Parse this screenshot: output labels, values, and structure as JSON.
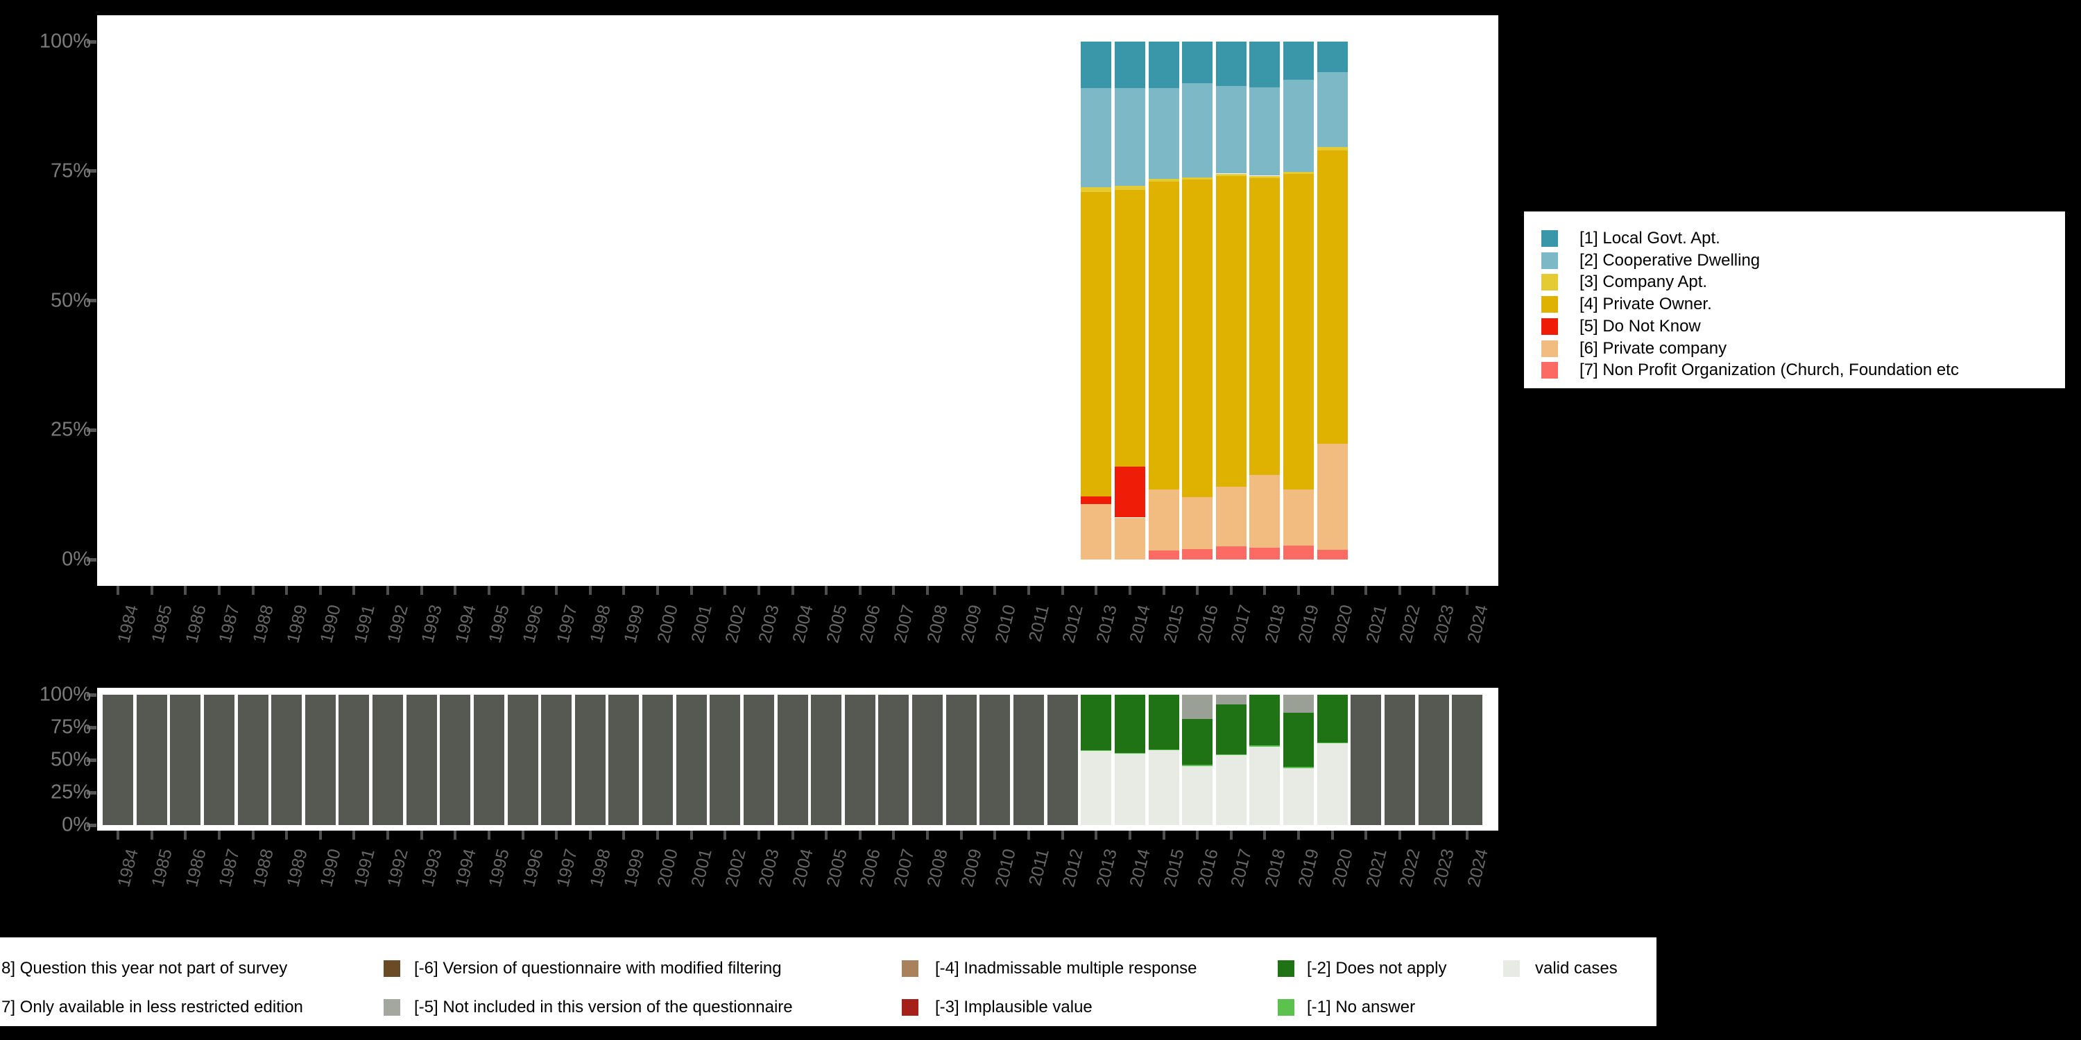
{
  "page": {
    "background": "#000000",
    "panel_background": "#ffffff"
  },
  "axes": {
    "years": [
      "1984",
      "1985",
      "1986",
      "1987",
      "1988",
      "1989",
      "1990",
      "1991",
      "1992",
      "1993",
      "1994",
      "1995",
      "1996",
      "1997",
      "1998",
      "1999",
      "2000",
      "2001",
      "2002",
      "2003",
      "2004",
      "2005",
      "2006",
      "2007",
      "2008",
      "2009",
      "2010",
      "2011",
      "2012",
      "2013",
      "2014",
      "2015",
      "2016",
      "2017",
      "2018",
      "2019",
      "2020",
      "2021",
      "2022",
      "2023",
      "2024"
    ],
    "percent_ticks": [
      {
        "label": "100%",
        "pct": 100
      },
      {
        "label": "75%",
        "pct": 75
      },
      {
        "label": "50%",
        "pct": 50
      },
      {
        "label": "25%",
        "pct": 25
      },
      {
        "label": "0%",
        "pct": 0
      }
    ]
  },
  "top_legend": {
    "items": [
      {
        "label": "[1] Local Govt. Apt.",
        "color": "#3a97aa"
      },
      {
        "label": "[2] Cooperative Dwelling",
        "color": "#7cb8c6"
      },
      {
        "label": "[3] Company Apt.",
        "color": "#e4ca33"
      },
      {
        "label": "[4] Private Owner.",
        "color": "#dfb100"
      },
      {
        "label": "[5] Do Not Know",
        "color": "#ef1c08"
      },
      {
        "label": "[6] Private company",
        "color": "#f2bc80"
      },
      {
        "label": "[7] Non Profit Organization (Church, Foundation etc",
        "color": "#fb6a63"
      }
    ]
  },
  "bottom_legend": {
    "columns": [
      {
        "x_swatch": null,
        "x_label": 2,
        "row1": {
          "label": "8] Question this year not part of survey",
          "color": null
        },
        "row2": {
          "label": "7] Only available in less restricted edition",
          "color": null
        }
      },
      {
        "x_swatch": 553,
        "x_label": 597,
        "row1": {
          "label": "[-6] Version of questionnaire with modified filtering",
          "color": "#6b4a26"
        },
        "row2": {
          "label": "[-5] Not included in this version of the questionnaire",
          "color": "#a3a79f"
        }
      },
      {
        "x_swatch": 1300,
        "x_label": 1348,
        "row1": {
          "label": "[-4] Inadmissable multiple response",
          "color": "#a9825c"
        },
        "row2": {
          "label": "[-3] Implausible value",
          "color": "#a6201a"
        }
      },
      {
        "x_swatch": 1842,
        "x_label": 1884,
        "row1": {
          "label": "[-2] Does not apply",
          "color": "#1f7314"
        },
        "row2": {
          "label": "[-1] No answer",
          "color": "#5cc24e"
        }
      },
      {
        "x_swatch": 2167,
        "x_label": 2213,
        "row1": {
          "label": "valid cases",
          "color": "#e7ebe3"
        },
        "row2": {
          "label": "",
          "color": null
        }
      }
    ]
  },
  "chart_data": [
    {
      "id": "category-distribution",
      "type": "bar",
      "stacked": true,
      "unit": "percent",
      "ylim": [
        0,
        100
      ],
      "grid": false,
      "legend_position": "right",
      "categories_all_years": true,
      "bar_years": [
        "2013",
        "2014",
        "2015",
        "2016",
        "2017",
        "2018",
        "2019",
        "2020"
      ],
      "series": [
        {
          "name": "[7] Non Profit Organization (Church, Foundation etc",
          "color": "#fb6a63",
          "values": {
            "2013": 0,
            "2014": 0,
            "2015": 1.7,
            "2016": 2.0,
            "2017": 2.5,
            "2018": 2.3,
            "2019": 2.7,
            "2020": 1.9
          }
        },
        {
          "name": "[6] Private company",
          "color": "#f2bc80",
          "values": {
            "2013": 10.7,
            "2014": 8.1,
            "2015": 11.8,
            "2016": 10.0,
            "2017": 11.6,
            "2018": 14.0,
            "2019": 10.8,
            "2020": 20.5
          }
        },
        {
          "name": "[5] Do Not Know",
          "color": "#ef1c08",
          "values": {
            "2013": 1.5,
            "2014": 9.8,
            "2015": 0,
            "2016": 0,
            "2017": 0,
            "2018": 0,
            "2019": 0,
            "2020": 0
          }
        },
        {
          "name": "[4] Private Owner.",
          "color": "#dfb100",
          "values": {
            "2013": 58.8,
            "2014": 53.4,
            "2015": 59.5,
            "2016": 61.3,
            "2017": 60.0,
            "2018": 57.4,
            "2019": 61.0,
            "2020": 56.6
          }
        },
        {
          "name": "[3] Company Apt.",
          "color": "#e4ca33",
          "values": {
            "2013": 0.9,
            "2014": 0.8,
            "2015": 0.5,
            "2016": 0.5,
            "2017": 0.4,
            "2018": 0.4,
            "2019": 0.4,
            "2020": 0.6
          }
        },
        {
          "name": "[2] Cooperative Dwelling",
          "color": "#7cb8c6",
          "values": {
            "2013": 19.2,
            "2014": 19.0,
            "2015": 17.5,
            "2016": 18.2,
            "2017": 16.9,
            "2018": 17.1,
            "2019": 17.8,
            "2020": 14.5
          }
        },
        {
          "name": "[1] Local Govt. Apt.",
          "color": "#3a97aa",
          "values": {
            "2013": 8.9,
            "2014": 8.9,
            "2015": 9.0,
            "2016": 8.0,
            "2017": 8.6,
            "2018": 8.8,
            "2019": 7.3,
            "2020": 5.9
          }
        }
      ]
    },
    {
      "id": "missing-values",
      "type": "bar",
      "stacked": true,
      "unit": "percent",
      "ylim": [
        0,
        100
      ],
      "grid": false,
      "legend_position": "bottom",
      "series": [
        {
          "name": "valid cases",
          "color": "#e7ebe3",
          "values": {
            "2013": 57.0,
            "2014": 55.2,
            "2015": 57.3,
            "2016": 45.1,
            "2017": 53.5,
            "2018": 60.3,
            "2019": 43.8,
            "2020": 62.8
          }
        },
        {
          "name": "[-1] No answer",
          "color": "#5cc24e",
          "values": {
            "2013": 0.5,
            "2014": 0.3,
            "2015": 0.7,
            "2016": 1.0,
            "2017": 0.7,
            "2018": 0.7,
            "2019": 0.8,
            "2020": 0.5
          }
        },
        {
          "name": "[-2] Does not apply",
          "color": "#1f7314",
          "values": {
            "2013": 42.5,
            "2014": 44.5,
            "2015": 42.0,
            "2016": 35.5,
            "2017": 38.5,
            "2018": 39.0,
            "2019": 41.5,
            "2020": 36.7
          }
        },
        {
          "name": "[-5] Not included in this version of the questionnaire",
          "color": "#9aa096",
          "values": {
            "2013": 0,
            "2014": 0,
            "2015": 0,
            "2016": 18.4,
            "2017": 7.3,
            "2018": 0,
            "2019": 13.9,
            "2020": 0
          }
        },
        {
          "name": "[-8] Question this year not part of survey",
          "color": "#555951",
          "values": {
            "1984": 100,
            "1985": 100,
            "1986": 100,
            "1987": 100,
            "1988": 100,
            "1989": 100,
            "1990": 100,
            "1991": 100,
            "1992": 100,
            "1993": 100,
            "1994": 100,
            "1995": 100,
            "1996": 100,
            "1997": 100,
            "1998": 100,
            "1999": 100,
            "2000": 100,
            "2001": 100,
            "2002": 100,
            "2003": 100,
            "2004": 100,
            "2005": 100,
            "2006": 100,
            "2007": 100,
            "2008": 100,
            "2009": 100,
            "2010": 100,
            "2011": 100,
            "2012": 100,
            "2021": 100,
            "2022": 100,
            "2023": 100,
            "2024": 100
          }
        }
      ]
    }
  ]
}
